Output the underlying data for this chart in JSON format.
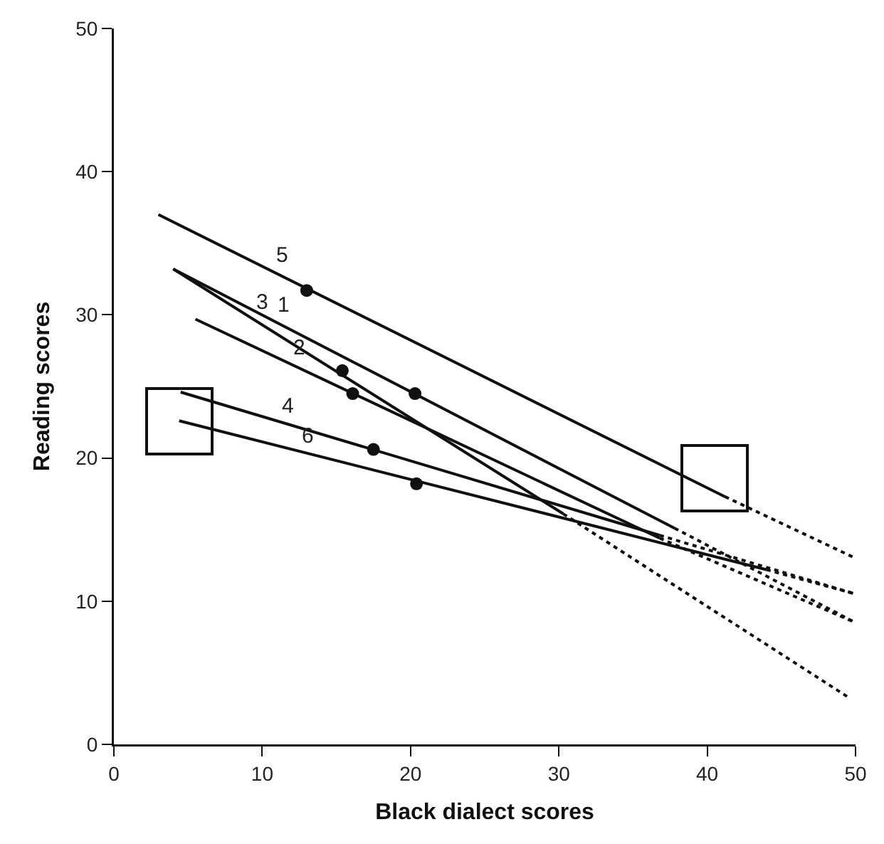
{
  "chart_data": {
    "type": "line",
    "xlabel": "Black dialect scores",
    "ylabel": "Reading scores",
    "xlim": [
      0,
      50
    ],
    "xticks": [
      0,
      10,
      20,
      30,
      40,
      50
    ],
    "ylim": [
      0,
      50
    ],
    "yticks": [
      0,
      10,
      20,
      30,
      40,
      50
    ],
    "grid": false,
    "legend": false,
    "line_style": "solid",
    "marker": "none",
    "series": [
      {
        "name": "5",
        "color": "#111111",
        "x": [
          3,
          41.2
        ],
        "values": [
          37,
          17.3
        ]
      },
      {
        "name": "1",
        "color": "#111111",
        "x": [
          4,
          37.8
        ],
        "values": [
          33.2,
          15.1
        ]
      },
      {
        "name": "3",
        "color": "#111111",
        "x": [
          4,
          30.3
        ],
        "values": [
          33.2,
          16.1
        ]
      },
      {
        "name": "2",
        "color": "#111111",
        "x": [
          5.5,
          36.8
        ],
        "values": [
          29.7,
          14.4
        ]
      },
      {
        "name": "4",
        "color": "#111111",
        "x": [
          4.5,
          36.8
        ],
        "values": [
          24.6,
          14.6
        ]
      },
      {
        "name": "6",
        "color": "#111111",
        "x": [
          4.4,
          44
        ],
        "values": [
          22.6,
          12.2
        ]
      },
      {
        "color": "#111111",
        "line_style": "dotted",
        "x": [
          41.2,
          50
        ],
        "values": [
          17.3,
          13
        ]
      },
      {
        "color": "#111111",
        "line_style": "dotted",
        "x": [
          37.8,
          50
        ],
        "values": [
          15.1,
          8.5
        ]
      },
      {
        "color": "#111111",
        "line_style": "dotted",
        "x": [
          30.3,
          49.5
        ],
        "values": [
          16.1,
          3.3
        ]
      },
      {
        "color": "#111111",
        "line_style": "dotted",
        "x": [
          36.8,
          50
        ],
        "values": [
          14.4,
          8.5
        ]
      },
      {
        "color": "#111111",
        "line_style": "dotted",
        "x": [
          36.8,
          50
        ],
        "values": [
          14.6,
          10.5
        ]
      },
      {
        "color": "#111111",
        "line_style": "dotted",
        "x": [
          44,
          50
        ],
        "values": [
          12.2,
          10.5
        ]
      },
      {
        "type": "scatter",
        "marker": "circle",
        "color": "#111111",
        "x": [
          13,
          15.4,
          20.3,
          16.1,
          17.5,
          20.4
        ],
        "values": [
          31.7,
          26.1,
          24.5,
          24.5,
          20.6,
          18.2
        ]
      }
    ]
  }
}
